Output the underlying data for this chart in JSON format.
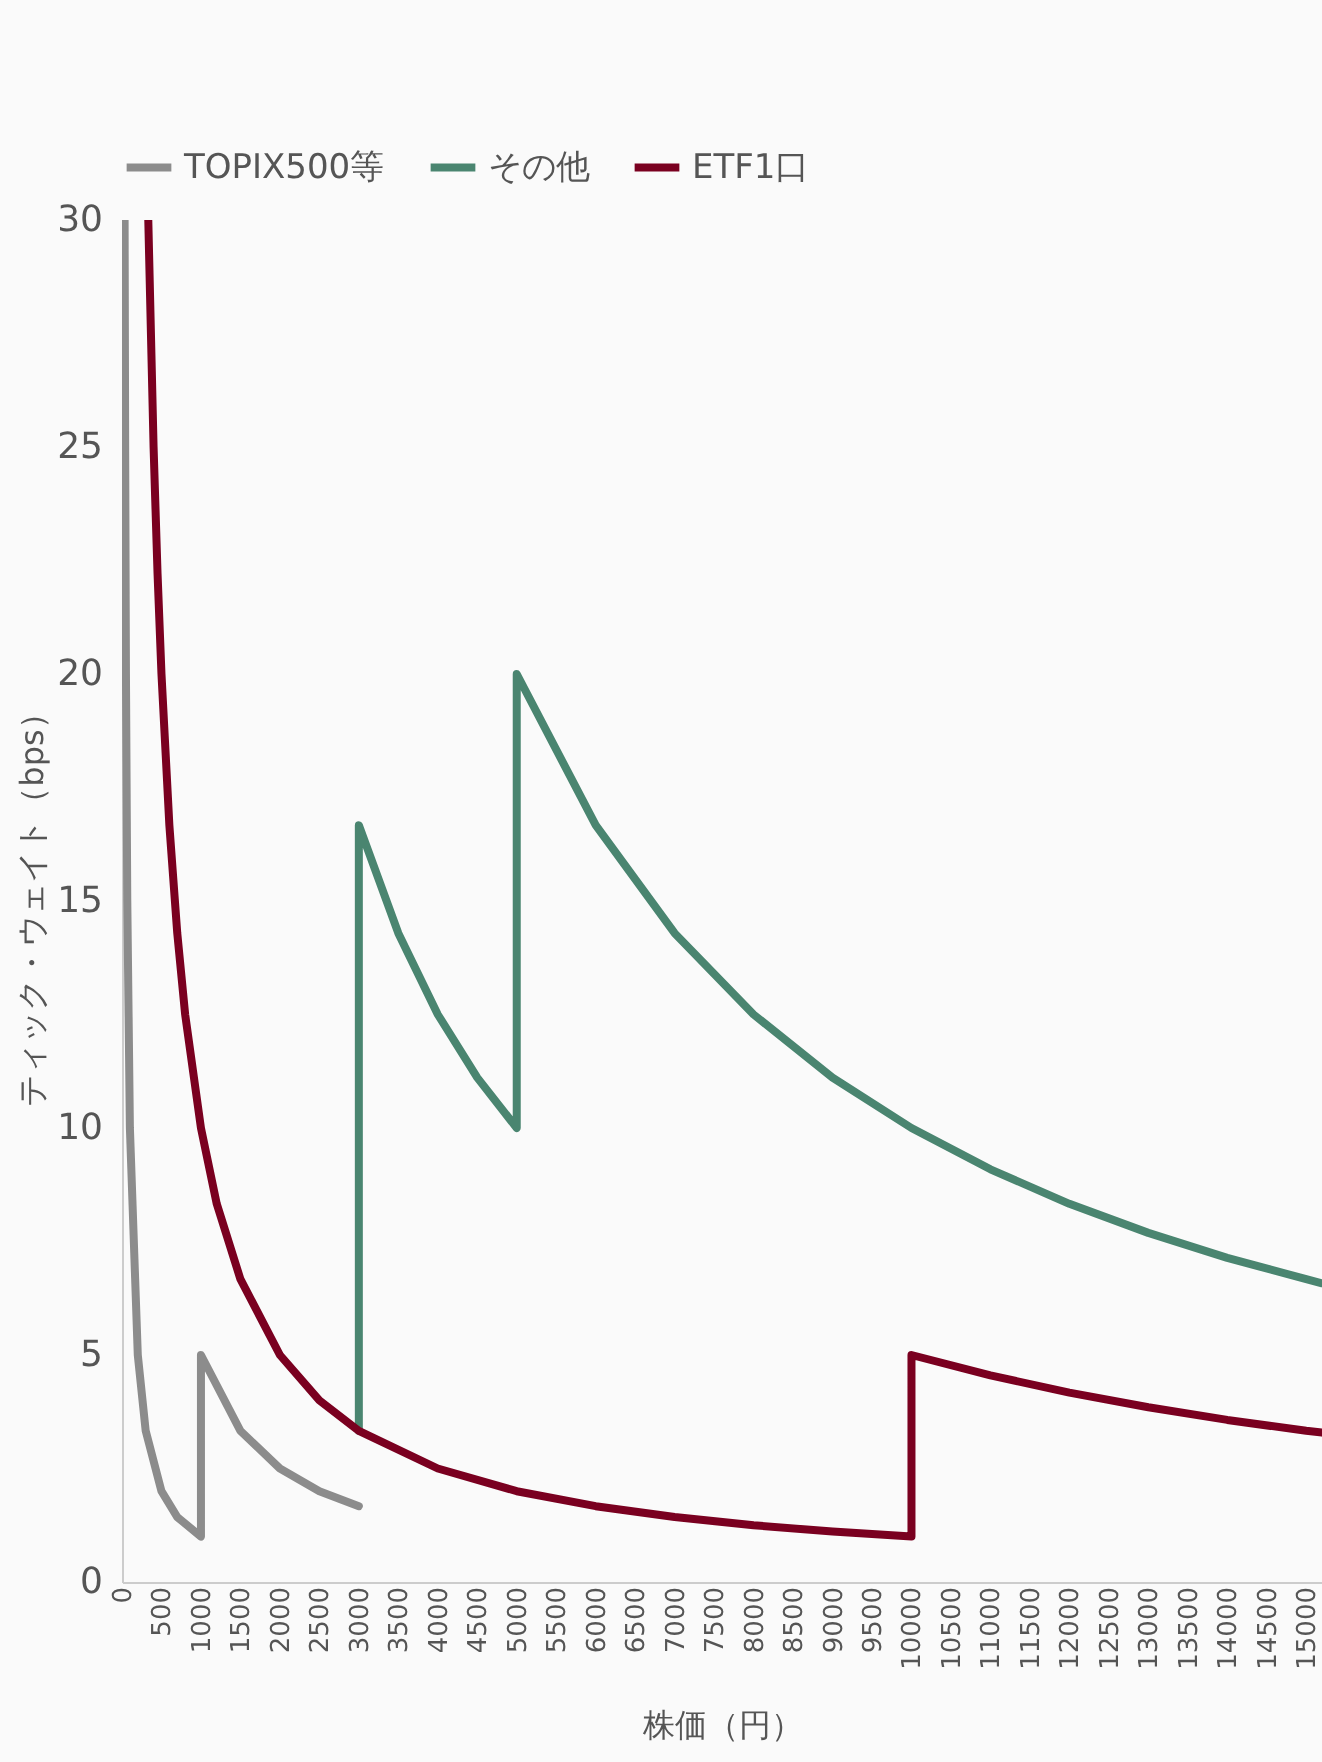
{
  "chart_data": {
    "type": "line",
    "xlabel": "株価（円）",
    "ylabel": "ティック・ウェイト（bps）",
    "xlim": [
      0,
      15200
    ],
    "xticks": [
      0,
      500,
      1000,
      1500,
      2000,
      2500,
      3000,
      3500,
      4000,
      4500,
      5000,
      5500,
      6000,
      6500,
      7000,
      7500,
      8000,
      8500,
      9000,
      9500,
      10000,
      10500,
      11000,
      11500,
      12000,
      12500,
      13000,
      13500,
      14000,
      14500,
      15000
    ],
    "ylim": [
      0,
      30
    ],
    "yticks": [
      0,
      5,
      10,
      15,
      20,
      25,
      30
    ],
    "grid": false,
    "legend": "top",
    "marker": "none",
    "line_style": "solid",
    "series": [
      {
        "name": "TOPIX500等",
        "color": "#8c8c8c",
        "x": [
          33,
          40,
          50,
          67,
          100,
          200,
          300,
          500,
          700,
          1000,
          1000,
          1500,
          2000,
          2500,
          3000
        ],
        "values": [
          30,
          25,
          20,
          15,
          10,
          5,
          3.33,
          2,
          1.43,
          1,
          5,
          3.33,
          2.5,
          2,
          1.67
        ]
      },
      {
        "name": "その他",
        "color": "#4a8570",
        "x": [
          3000,
          3000,
          3500,
          4000,
          4500,
          5000,
          5000,
          6000,
          7000,
          8000,
          9000,
          10000,
          11000,
          12000,
          13000,
          14000,
          15000,
          15200
        ],
        "values": [
          3.33,
          16.67,
          14.29,
          12.5,
          11.11,
          10,
          20,
          16.67,
          14.29,
          12.5,
          11.11,
          10,
          9.09,
          8.33,
          7.69,
          7.14,
          6.67,
          6.58
        ]
      },
      {
        "name": "ETF1口",
        "color": "#7a0020",
        "x": [
          333,
          400,
          450,
          500,
          600,
          700,
          800,
          1000,
          1200,
          1500,
          2000,
          2500,
          3000,
          4000,
          5000,
          6000,
          7000,
          8000,
          9000,
          10000,
          10000,
          11000,
          12000,
          13000,
          14000,
          15000,
          15200
        ],
        "values": [
          30,
          25,
          22.22,
          20,
          16.67,
          14.29,
          12.5,
          10,
          8.33,
          6.67,
          5,
          4,
          3.33,
          2.5,
          2,
          1.67,
          1.43,
          1.25,
          1.11,
          1,
          5,
          4.55,
          4.17,
          3.85,
          3.57,
          3.33,
          3.29
        ]
      }
    ]
  }
}
